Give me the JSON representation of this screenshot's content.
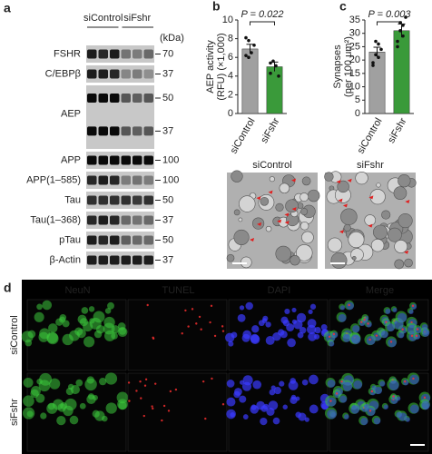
{
  "panels": {
    "a": {
      "label": "a",
      "conditions": [
        "siControl",
        "siFshr"
      ],
      "unit": "(kDa)",
      "rows": [
        {
          "name": "FSHR",
          "markers": [
            70
          ]
        },
        {
          "name": "C/EBPβ",
          "markers": [
            37
          ]
        },
        {
          "name": "AEP",
          "markers": [
            50,
            37
          ]
        },
        {
          "name": "APP",
          "markers": [
            100
          ]
        },
        {
          "name": "APP(1–585)",
          "markers": [
            100
          ]
        },
        {
          "name": "Tau",
          "markers": [
            50
          ]
        },
        {
          "name": "Tau(1–368)",
          "markers": [
            37
          ]
        },
        {
          "name": "pTau",
          "markers": [
            50
          ]
        },
        {
          "name": "β-Actin",
          "markers": [
            37
          ]
        }
      ]
    },
    "em": {
      "conditions": [
        "siControl",
        "siFshr"
      ]
    },
    "d": {
      "label": "d",
      "channels": [
        "NeuN",
        "TUNEL",
        "DAPI",
        "Merge"
      ],
      "colors": [
        "#4fd84f",
        "#e84040",
        "#5a5aff",
        "#ffffff"
      ],
      "conditions": [
        "siControl",
        "siFshr"
      ]
    }
  },
  "chart_data": [
    {
      "type": "bar",
      "label": "b",
      "ylabel": [
        "AEP activity",
        "(RFU) (×1,000)"
      ],
      "annotation": "P = 0.022",
      "categories": [
        "siControl",
        "siFshr"
      ],
      "values": [
        6.9,
        5.0
      ],
      "errors": [
        0.5,
        0.5
      ],
      "points": [
        [
          6.2,
          7.8,
          6.5,
          7.3,
          8.1,
          6.0
        ],
        [
          4.3,
          5.6,
          5.1,
          4.0,
          5.4
        ]
      ],
      "colors": [
        "#a0a0a0",
        "#3a9a3a"
      ],
      "ylim": [
        0,
        10
      ],
      "yticks": [
        0,
        2,
        4,
        6,
        8,
        10
      ]
    },
    {
      "type": "bar",
      "label": "c",
      "ylabel": [
        "Synapses",
        "(per 100 μm²)"
      ],
      "annotation": "P = 0.003",
      "categories": [
        "siControl",
        "siFshr"
      ],
      "values": [
        23,
        31
      ],
      "errors": [
        1.8,
        2.5
      ],
      "points": [
        [
          19,
          22,
          26,
          24,
          18,
          27,
          21
        ],
        [
          27,
          34,
          29,
          36,
          25,
          31,
          33
        ]
      ],
      "colors": [
        "#a0a0a0",
        "#3a9a3a"
      ],
      "ylim": [
        0,
        35
      ],
      "yticks": [
        0,
        5,
        10,
        15,
        20,
        25,
        30,
        35
      ]
    }
  ]
}
